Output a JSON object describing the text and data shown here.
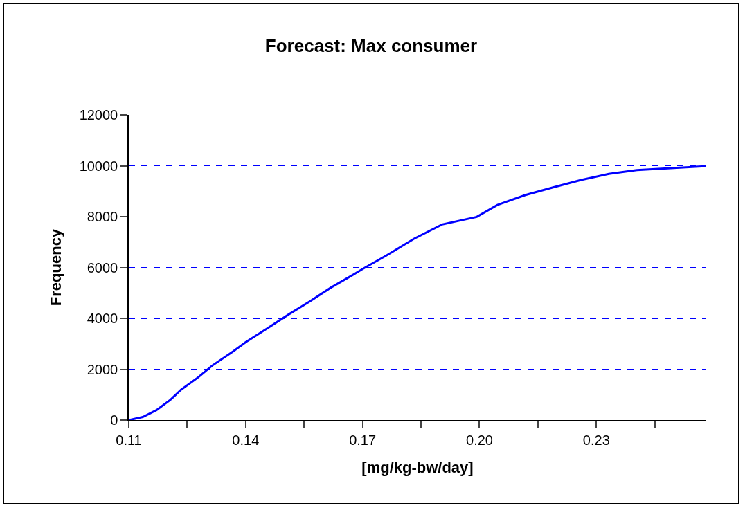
{
  "chart_data": {
    "type": "line",
    "title": "Forecast: Max consumer",
    "xlabel": "[mg/kg-bw/day]",
    "ylabel": "Frequency",
    "x": [
      0.11,
      0.1136,
      0.1171,
      0.1207,
      0.1234,
      0.1279,
      0.1314,
      0.1368,
      0.14,
      0.1457,
      0.1511,
      0.1564,
      0.1618,
      0.1671,
      0.17,
      0.1761,
      0.1832,
      0.1904,
      0.1993,
      0.2046,
      0.2118,
      0.2189,
      0.2261,
      0.2332,
      0.2404,
      0.2475,
      0.2546,
      0.2582
    ],
    "series": [
      {
        "color": "#0000ff",
        "values": [
          0,
          120,
          390,
          800,
          1190,
          1690,
          2140,
          2700,
          3060,
          3620,
          4160,
          4660,
          5200,
          5670,
          5940,
          6470,
          7130,
          7690,
          7990,
          8460,
          8850,
          9150,
          9440,
          9680,
          9830,
          9890,
          9950,
          9980
        ]
      }
    ],
    "xlim": [
      0.11,
      0.2582
    ],
    "xticks": [
      0.11,
      {
        "value": 0.125,
        "label": null
      },
      {
        "value": 0.14,
        "label": "0.14"
      },
      {
        "value": 0.155,
        "label": null
      },
      {
        "value": 0.17,
        "label": "0.17"
      },
      {
        "value": 0.185,
        "label": null
      },
      {
        "value": 0.2,
        "label": "0.20"
      },
      {
        "value": 0.215,
        "label": null
      },
      {
        "value": 0.23,
        "label": "0.23"
      },
      {
        "value": 0.245,
        "label": null
      }
    ],
    "ylim": [
      0,
      12000
    ],
    "yticks": [
      0,
      2000,
      4000,
      6000,
      8000,
      10000,
      12000
    ],
    "grid": "y",
    "marker": "none",
    "line_style": "solid"
  }
}
